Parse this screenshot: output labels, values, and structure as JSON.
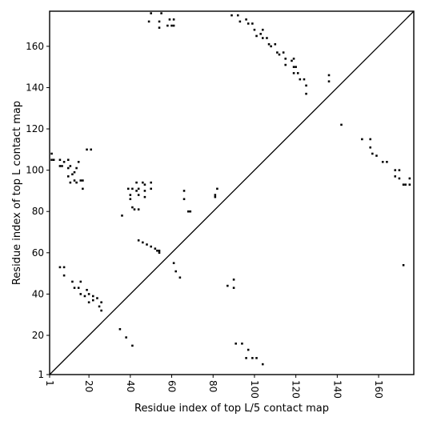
{
  "chart_data": {
    "type": "heatmap",
    "title": "",
    "xlabel": "Residue index of top L/5 contact map",
    "ylabel": "Residue index of top L contact map",
    "xlim": [
      1,
      177
    ],
    "ylim": [
      1,
      177
    ],
    "x_ticks": [
      1,
      20,
      40,
      60,
      80,
      100,
      120,
      140,
      160
    ],
    "x_tick_labels": [
      "1",
      "20",
      "40",
      "60",
      "80",
      "100",
      "120",
      "140",
      "160"
    ],
    "y_ticks": [
      1,
      20,
      40,
      60,
      80,
      100,
      120,
      140,
      160
    ],
    "y_tick_labels": [
      "1",
      "20",
      "40",
      "60",
      "80",
      "100",
      "120",
      "140",
      "160"
    ],
    "diagonal": true,
    "cell_color": "#000000",
    "upper_triangle_contacts": [
      [
        50,
        176
      ],
      [
        55,
        176
      ],
      [
        49,
        172
      ],
      [
        54,
        172
      ],
      [
        54,
        169
      ],
      [
        58,
        170
      ],
      [
        59,
        173
      ],
      [
        60,
        170
      ],
      [
        61,
        173
      ],
      [
        61,
        170
      ],
      [
        89,
        175
      ],
      [
        92,
        175
      ],
      [
        93,
        172
      ],
      [
        96,
        173
      ],
      [
        97,
        171
      ],
      [
        99,
        171
      ],
      [
        100,
        168
      ],
      [
        101,
        165
      ],
      [
        104,
        168
      ],
      [
        103,
        166
      ],
      [
        104,
        164
      ],
      [
        106,
        164
      ],
      [
        107,
        161
      ],
      [
        108,
        160
      ],
      [
        110,
        161
      ],
      [
        111,
        157
      ],
      [
        112,
        156
      ],
      [
        114,
        157
      ],
      [
        115,
        154
      ],
      [
        115,
        151
      ],
      [
        118,
        153
      ],
      [
        119,
        154
      ],
      [
        119,
        150
      ],
      [
        119,
        147
      ],
      [
        120,
        150
      ],
      [
        121,
        147
      ],
      [
        122,
        144
      ],
      [
        124,
        144
      ],
      [
        125,
        141
      ],
      [
        125,
        137
      ],
      [
        136,
        146
      ],
      [
        136,
        143
      ],
      [
        142,
        122
      ],
      [
        152,
        115
      ],
      [
        156,
        115
      ],
      [
        156,
        111
      ],
      [
        157,
        108
      ],
      [
        159,
        107
      ],
      [
        162,
        104
      ],
      [
        164,
        104
      ],
      [
        168,
        100
      ],
      [
        168,
        97
      ],
      [
        170,
        100
      ],
      [
        170,
        96
      ],
      [
        172,
        93
      ],
      [
        173,
        93
      ],
      [
        175,
        96
      ],
      [
        175,
        93
      ]
    ],
    "lower_triangle_contacts": [
      [
        2,
        108
      ],
      [
        2,
        105
      ],
      [
        3,
        105
      ],
      [
        6,
        105
      ],
      [
        6,
        102
      ],
      [
        7,
        102
      ],
      [
        8,
        104
      ],
      [
        10,
        105
      ],
      [
        10,
        101
      ],
      [
        11,
        102
      ],
      [
        10,
        97
      ],
      [
        12,
        98
      ],
      [
        13,
        99
      ],
      [
        14,
        101
      ],
      [
        11,
        94
      ],
      [
        13,
        95
      ],
      [
        14,
        94
      ],
      [
        15,
        104
      ],
      [
        16,
        95
      ],
      [
        17,
        95
      ],
      [
        17,
        91
      ],
      [
        19,
        110
      ],
      [
        21,
        110
      ],
      [
        6,
        53
      ],
      [
        8,
        53
      ],
      [
        8,
        49
      ],
      [
        12,
        46
      ],
      [
        13,
        43
      ],
      [
        15,
        43
      ],
      [
        16,
        46
      ],
      [
        16,
        40
      ],
      [
        18,
        39
      ],
      [
        19,
        42
      ],
      [
        20,
        36
      ],
      [
        20,
        40
      ],
      [
        22,
        37
      ],
      [
        22,
        39
      ],
      [
        24,
        38
      ],
      [
        25,
        34
      ],
      [
        26,
        36
      ],
      [
        26,
        32
      ],
      [
        35,
        23
      ],
      [
        38,
        19
      ],
      [
        41,
        15
      ],
      [
        36,
        78
      ],
      [
        39,
        91
      ],
      [
        41,
        91
      ],
      [
        40,
        88
      ],
      [
        40,
        86
      ],
      [
        41,
        82
      ],
      [
        42,
        81
      ],
      [
        43,
        94
      ],
      [
        43,
        90
      ],
      [
        44,
        91
      ],
      [
        44,
        88
      ],
      [
        44,
        81
      ],
      [
        46,
        94
      ],
      [
        47,
        93
      ],
      [
        47,
        90
      ],
      [
        47,
        87
      ],
      [
        50,
        94
      ],
      [
        50,
        91
      ],
      [
        44,
        66
      ],
      [
        46,
        65
      ],
      [
        48,
        64
      ],
      [
        50,
        63
      ],
      [
        52,
        62
      ],
      [
        53,
        61
      ],
      [
        54,
        61
      ],
      [
        54,
        60
      ],
      [
        61,
        55
      ],
      [
        62,
        51
      ],
      [
        64,
        48
      ],
      [
        66,
        90
      ],
      [
        66,
        86
      ],
      [
        68,
        80
      ],
      [
        69,
        80
      ],
      [
        81,
        88
      ],
      [
        82,
        91
      ],
      [
        81,
        87
      ],
      [
        87,
        44
      ],
      [
        90,
        47
      ],
      [
        90,
        43
      ],
      [
        91,
        16
      ],
      [
        94,
        16
      ],
      [
        96,
        9
      ],
      [
        97,
        13
      ],
      [
        99,
        9
      ],
      [
        101,
        9
      ],
      [
        104,
        6
      ],
      [
        172,
        54
      ]
    ]
  }
}
